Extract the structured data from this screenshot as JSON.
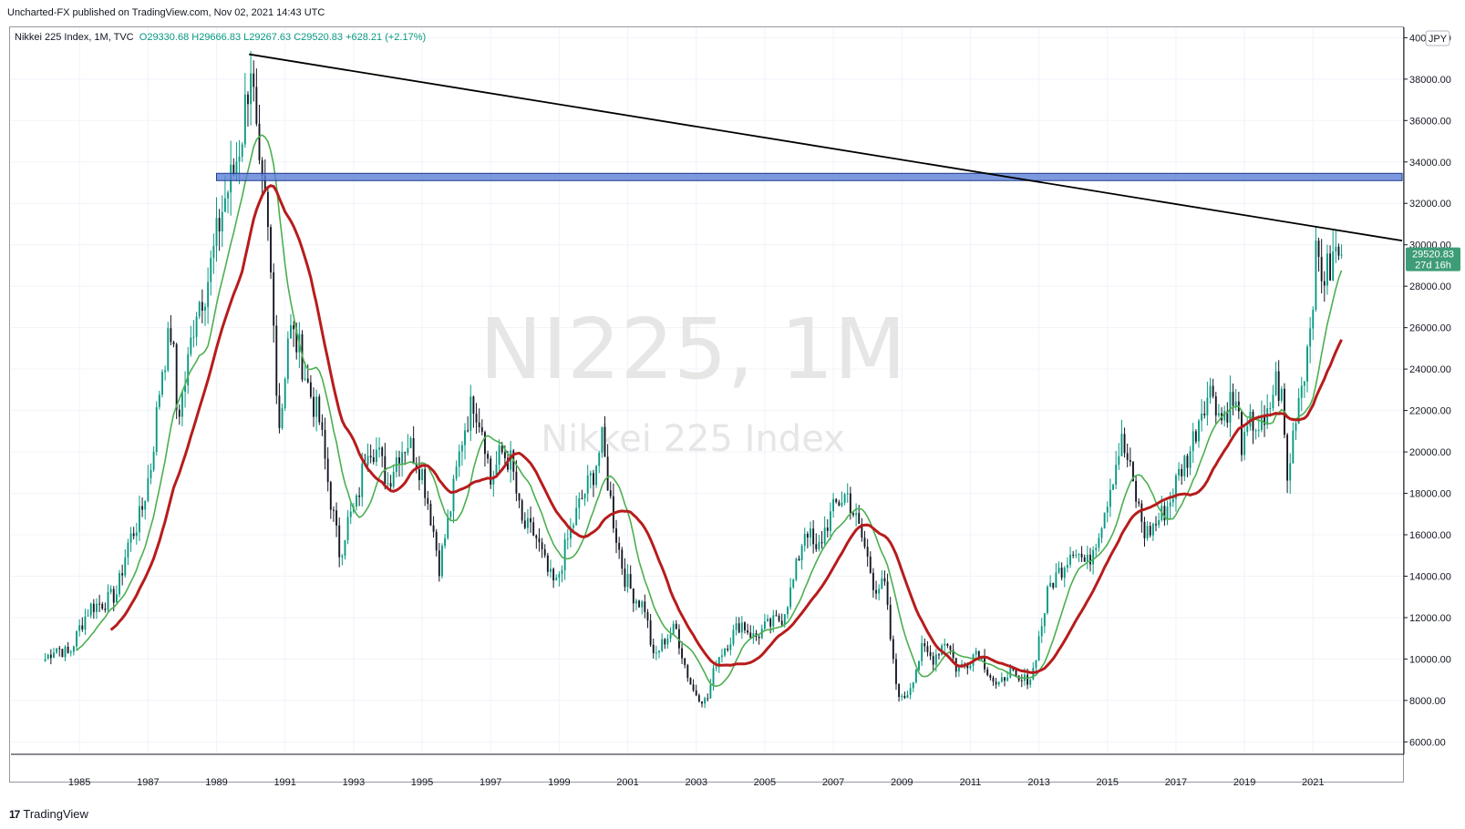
{
  "publisher": "Uncharted-FX published on TradingView.com, Nov 02, 2021 14:43 UTC",
  "legend": {
    "symbol": "Nikkei 225 Index, 1M, TVC",
    "ohlc": "O29330.68  H29666.83  L29267.63  C29520.83  +628.21 (+2.17%)"
  },
  "currency_label": "JPY",
  "watermark": {
    "main": "NI225, 1M",
    "sub": "Nikkei 225 Index"
  },
  "price_label": {
    "value": "29520.83",
    "countdown": "27d 16h"
  },
  "logo_text": "TradingView",
  "colors": {
    "up": "#089981",
    "down": "#131722",
    "ma_fast": "#4caf50",
    "ma_slow": "#b71c1c",
    "zone": "#5b7fd8",
    "trend": "#000000",
    "grid": "#f0f3fa",
    "price_tag": "#3e9c77"
  },
  "chart_data": {
    "type": "candlestick",
    "title": "Nikkei 225 Index, 1M",
    "xlabel": "",
    "ylabel": "",
    "x_ticks": [
      "1985",
      "1987",
      "1989",
      "1991",
      "1993",
      "1995",
      "1997",
      "1999",
      "2001",
      "2003",
      "2005",
      "2007",
      "2009",
      "2011",
      "2013",
      "2015",
      "2017",
      "2019",
      "2021"
    ],
    "y_ticks": [
      "6000.00",
      "8000.00",
      "10000.00",
      "12000.00",
      "14000.00",
      "16000.00",
      "18000.00",
      "20000.00",
      "22000.00",
      "24000.00",
      "26000.00",
      "28000.00",
      "30000.00",
      "32000.00",
      "34000.00",
      "36000.00",
      "38000.00",
      "40000.00"
    ],
    "xlim": [
      1983.0,
      2023.6
    ],
    "ylim": [
      5400,
      40500
    ],
    "price_points": [
      [
        1984.0,
        10000
      ],
      [
        1984.3,
        10600
      ],
      [
        1984.7,
        10200
      ],
      [
        1985.0,
        11500
      ],
      [
        1985.3,
        12500
      ],
      [
        1985.8,
        12800
      ],
      [
        1986.1,
        13200
      ],
      [
        1986.4,
        15500
      ],
      [
        1986.8,
        17000
      ],
      [
        1987.1,
        19500
      ],
      [
        1987.4,
        24000
      ],
      [
        1987.7,
        26000
      ],
      [
        1987.85,
        21600
      ],
      [
        1988.1,
        23500
      ],
      [
        1988.4,
        27000
      ],
      [
        1988.7,
        28000
      ],
      [
        1988.9,
        29500
      ],
      [
        1989.2,
        32000
      ],
      [
        1989.5,
        33500
      ],
      [
        1989.75,
        35500
      ],
      [
        1990.0,
        38900
      ],
      [
        1990.25,
        33000
      ],
      [
        1990.45,
        31500
      ],
      [
        1990.6,
        28000
      ],
      [
        1990.75,
        23500
      ],
      [
        1990.85,
        21000
      ],
      [
        1991.1,
        26000
      ],
      [
        1991.4,
        25000
      ],
      [
        1991.7,
        23000
      ],
      [
        1992.0,
        21500
      ],
      [
        1992.3,
        18000
      ],
      [
        1992.6,
        15000
      ],
      [
        1992.8,
        16500
      ],
      [
        1993.1,
        17500
      ],
      [
        1993.4,
        20500
      ],
      [
        1993.7,
        20000
      ],
      [
        1994.0,
        18500
      ],
      [
        1994.3,
        20000
      ],
      [
        1994.6,
        20500
      ],
      [
        1995.0,
        19000
      ],
      [
        1995.3,
        16500
      ],
      [
        1995.5,
        14500
      ],
      [
        1995.8,
        17000
      ],
      [
        1996.2,
        21000
      ],
      [
        1996.5,
        22500
      ],
      [
        1996.8,
        21000
      ],
      [
        1997.0,
        18500
      ],
      [
        1997.3,
        20000
      ],
      [
        1997.6,
        19500
      ],
      [
        1997.9,
        16500
      ],
      [
        1998.3,
        16000
      ],
      [
        1998.7,
        14000
      ],
      [
        1998.9,
        13500
      ],
      [
        1999.2,
        15500
      ],
      [
        1999.6,
        17500
      ],
      [
        2000.0,
        19000
      ],
      [
        2000.25,
        20500
      ],
      [
        2000.6,
        16500
      ],
      [
        2000.9,
        14000
      ],
      [
        2001.2,
        13000
      ],
      [
        2001.5,
        12500
      ],
      [
        2001.75,
        10000
      ],
      [
        2002.1,
        11000
      ],
      [
        2002.4,
        11500
      ],
      [
        2002.7,
        9500
      ],
      [
        2002.9,
        8500
      ],
      [
        2003.3,
        7900
      ],
      [
        2003.6,
        10000
      ],
      [
        2004.0,
        11000
      ],
      [
        2004.3,
        11800
      ],
      [
        2004.7,
        11000
      ],
      [
        2005.0,
        11500
      ],
      [
        2005.5,
        12000
      ],
      [
        2005.8,
        13500
      ],
      [
        2006.2,
        16500
      ],
      [
        2006.5,
        15000
      ],
      [
        2006.8,
        16500
      ],
      [
        2007.1,
        17500
      ],
      [
        2007.4,
        18000
      ],
      [
        2007.7,
        16500
      ],
      [
        2007.9,
        15500
      ],
      [
        2008.2,
        13500
      ],
      [
        2008.5,
        13500
      ],
      [
        2008.8,
        9000
      ],
      [
        2009.0,
        8000
      ],
      [
        2009.2,
        8500
      ],
      [
        2009.6,
        10500
      ],
      [
        2009.9,
        10000
      ],
      [
        2010.3,
        11000
      ],
      [
        2010.6,
        9500
      ],
      [
        2010.9,
        9800
      ],
      [
        2011.2,
        10500
      ],
      [
        2011.5,
        9500
      ],
      [
        2011.8,
        8500
      ],
      [
        2012.1,
        9500
      ],
      [
        2012.4,
        8800
      ],
      [
        2012.8,
        9200
      ],
      [
        2013.0,
        11000
      ],
      [
        2013.3,
        13500
      ],
      [
        2013.7,
        14500
      ],
      [
        2014.0,
        15500
      ],
      [
        2014.4,
        14500
      ],
      [
        2014.8,
        16500
      ],
      [
        2015.1,
        18500
      ],
      [
        2015.4,
        20500
      ],
      [
        2015.6,
        19500
      ],
      [
        2015.8,
        18000
      ],
      [
        2016.1,
        16000
      ],
      [
        2016.4,
        16500
      ],
      [
        2016.8,
        17500
      ],
      [
        2017.1,
        19000
      ],
      [
        2017.4,
        20000
      ],
      [
        2017.8,
        22500
      ],
      [
        2018.1,
        23000
      ],
      [
        2018.3,
        21500
      ],
      [
        2018.6,
        22500
      ],
      [
        2018.8,
        22000
      ],
      [
        2018.95,
        20000
      ],
      [
        2019.2,
        21500
      ],
      [
        2019.6,
        21000
      ],
      [
        2019.9,
        23500
      ],
      [
        2020.1,
        22500
      ],
      [
        2020.25,
        18500
      ],
      [
        2020.5,
        22000
      ],
      [
        2020.8,
        24500
      ],
      [
        2020.95,
        27000
      ],
      [
        2021.1,
        29500
      ],
      [
        2021.3,
        28500
      ],
      [
        2021.5,
        28800
      ],
      [
        2021.7,
        29800
      ],
      [
        2021.83,
        29520.83
      ]
    ],
    "zone": {
      "low": 33100,
      "high": 33450,
      "from_x": 1989.0
    },
    "trendline": {
      "from": [
        1989.95,
        39200
      ],
      "to": [
        2023.6,
        30200
      ]
    },
    "moving_averages": [
      {
        "role": "fast",
        "period": 12
      },
      {
        "role": "slow",
        "period": 24
      }
    ],
    "last_price": 29520.83
  }
}
